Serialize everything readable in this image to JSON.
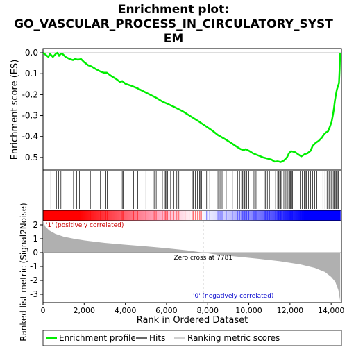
{
  "chart_data": [
    {
      "type": "line",
      "title": "Enrichment plot: GO_VASCULAR_PROCESS_IN_CIRCULATORY_SYSTEM",
      "title_lines": [
        "Enrichment plot:",
        "GO_VASCULAR_PROCESS_IN_CIRCULATORY_SYST",
        "EM"
      ],
      "ylabel": "Enrichment score (ES)",
      "xlim": [
        0,
        14500
      ],
      "ylim": [
        -0.56,
        0.02
      ],
      "yticks": [
        0.0,
        -0.1,
        -0.2,
        -0.3,
        -0.4,
        -0.5
      ],
      "ytick_labels": [
        "0.0",
        "-0.1",
        "-0.2",
        "-0.3",
        "-0.4",
        "-0.5"
      ],
      "grid": false,
      "series": [
        {
          "name": "Enrichment profile",
          "color": "#00ee00",
          "points": [
            [
              0,
              0.0
            ],
            [
              130,
              -0.01
            ],
            [
              260,
              -0.02
            ],
            [
              340,
              -0.005
            ],
            [
              480,
              -0.02
            ],
            [
              620,
              -0.005
            ],
            [
              700,
              0.0
            ],
            [
              780,
              -0.015
            ],
            [
              860,
              -0.005
            ],
            [
              940,
              -0.005
            ],
            [
              1100,
              -0.02
            ],
            [
              1300,
              -0.03
            ],
            [
              1450,
              -0.035
            ],
            [
              1550,
              -0.03
            ],
            [
              1700,
              -0.033
            ],
            [
              1850,
              -0.03
            ],
            [
              2000,
              -0.045
            ],
            [
              2200,
              -0.06
            ],
            [
              2350,
              -0.065
            ],
            [
              2600,
              -0.08
            ],
            [
              2800,
              -0.09
            ],
            [
              2950,
              -0.095
            ],
            [
              3100,
              -0.095
            ],
            [
              3300,
              -0.11
            ],
            [
              3550,
              -0.125
            ],
            [
              3750,
              -0.14
            ],
            [
              3850,
              -0.135
            ],
            [
              4000,
              -0.148
            ],
            [
              4300,
              -0.158
            ],
            [
              4600,
              -0.17
            ],
            [
              4900,
              -0.185
            ],
            [
              5200,
              -0.2
            ],
            [
              5500,
              -0.215
            ],
            [
              5800,
              -0.233
            ],
            [
              6100,
              -0.246
            ],
            [
              6400,
              -0.26
            ],
            [
              6800,
              -0.28
            ],
            [
              7200,
              -0.305
            ],
            [
              7600,
              -0.33
            ],
            [
              7900,
              -0.35
            ],
            [
              8200,
              -0.37
            ],
            [
              8500,
              -0.393
            ],
            [
              8800,
              -0.41
            ],
            [
              9100,
              -0.428
            ],
            [
              9400,
              -0.448
            ],
            [
              9600,
              -0.46
            ],
            [
              9750,
              -0.465
            ],
            [
              9850,
              -0.46
            ],
            [
              10000,
              -0.468
            ],
            [
              10200,
              -0.48
            ],
            [
              10450,
              -0.49
            ],
            [
              10700,
              -0.5
            ],
            [
              10900,
              -0.505
            ],
            [
              11100,
              -0.51
            ],
            [
              11250,
              -0.52
            ],
            [
              11400,
              -0.518
            ],
            [
              11550,
              -0.522
            ],
            [
              11700,
              -0.515
            ],
            [
              11850,
              -0.5
            ],
            [
              11950,
              -0.48
            ],
            [
              12050,
              -0.47
            ],
            [
              12250,
              -0.475
            ],
            [
              12400,
              -0.485
            ],
            [
              12550,
              -0.495
            ],
            [
              12700,
              -0.485
            ],
            [
              12850,
              -0.48
            ],
            [
              13000,
              -0.468
            ],
            [
              13100,
              -0.445
            ],
            [
              13250,
              -0.43
            ],
            [
              13400,
              -0.42
            ],
            [
              13550,
              -0.405
            ],
            [
              13650,
              -0.39
            ],
            [
              13750,
              -0.38
            ],
            [
              13850,
              -0.375
            ],
            [
              13950,
              -0.35
            ],
            [
              14020,
              -0.33
            ],
            [
              14080,
              -0.3
            ],
            [
              14130,
              -0.27
            ],
            [
              14180,
              -0.23
            ],
            [
              14230,
              -0.2
            ],
            [
              14280,
              -0.175
            ],
            [
              14330,
              -0.16
            ],
            [
              14380,
              -0.145
            ],
            [
              14410,
              -0.08
            ],
            [
              14430,
              -0.02
            ],
            [
              14440,
              0.0
            ]
          ]
        }
      ]
    },
    {
      "type": "scatter",
      "subtype": "hits",
      "series_name": "Hits",
      "color": "#000000",
      "x": [
        50,
        380,
        650,
        760,
        870,
        1480,
        1630,
        1770,
        2300,
        2790,
        3050,
        3120,
        3800,
        3850,
        3900,
        4400,
        4600,
        5000,
        5400,
        5500,
        5800,
        5900,
        5950,
        6000,
        6050,
        6200,
        6350,
        6500,
        6600,
        6900,
        7100,
        7250,
        7300,
        7400,
        7500,
        7600,
        7650,
        7700,
        7950,
        8100,
        8500,
        8600,
        8700,
        8900,
        9200,
        9450,
        9550,
        9650,
        9700,
        9750,
        9800,
        9850,
        9900,
        10000,
        10250,
        10350,
        10750,
        10800,
        10900,
        11000,
        11300,
        11400,
        11450,
        11500,
        11550,
        11600,
        11700,
        11800,
        11850,
        11900,
        11950,
        11980,
        12020,
        12050,
        12080,
        12120,
        12500,
        12600,
        12700,
        12750,
        12800,
        12900,
        13000,
        13100,
        13200,
        13300,
        13500,
        13600,
        13700,
        13800,
        13850,
        13900,
        13950,
        14000,
        14050,
        14100,
        14150,
        14200,
        14250,
        14300,
        14350
      ]
    },
    {
      "type": "heatmap",
      "subtype": "rank-color-bar",
      "label_positive": "'1' (positively correlated)",
      "label_negative": "'0' (negatively correlated)",
      "colors": [
        "#ff0000",
        "#ffffff",
        "#0000ff"
      ]
    },
    {
      "type": "area",
      "series_name": "Ranking metric scores",
      "color": "#b0b0b0",
      "xlabel": "Rank in Ordered Dataset",
      "ylabel": "Ranked list metric (Signal2Noise)",
      "xlim": [
        0,
        14500
      ],
      "ylim": [
        -3.6,
        2.3
      ],
      "xticks": [
        0,
        2000,
        4000,
        6000,
        8000,
        10000,
        12000,
        14000
      ],
      "xtick_labels": [
        "0",
        "2,000",
        "4,000",
        "6,000",
        "8,000",
        "10,000",
        "12,000",
        "14,000"
      ],
      "yticks": [
        2,
        1,
        0,
        -1,
        -2,
        -3
      ],
      "ytick_labels": [
        "2",
        "1",
        "0",
        "-1",
        "-2",
        "-3"
      ],
      "points": [
        [
          0,
          2.3
        ],
        [
          100,
          1.9
        ],
        [
          300,
          1.6
        ],
        [
          600,
          1.35
        ],
        [
          1000,
          1.15
        ],
        [
          1500,
          1.0
        ],
        [
          2000,
          0.88
        ],
        [
          3000,
          0.7
        ],
        [
          4000,
          0.57
        ],
        [
          5000,
          0.45
        ],
        [
          6000,
          0.32
        ],
        [
          7000,
          0.16
        ],
        [
          7781,
          0.0
        ],
        [
          8500,
          -0.15
        ],
        [
          9500,
          -0.3
        ],
        [
          10500,
          -0.45
        ],
        [
          11500,
          -0.62
        ],
        [
          12500,
          -0.85
        ],
        [
          13200,
          -1.1
        ],
        [
          13700,
          -1.4
        ],
        [
          14000,
          -1.75
        ],
        [
          14200,
          -2.1
        ],
        [
          14350,
          -2.7
        ],
        [
          14440,
          -3.5
        ]
      ],
      "zero_cross_label": "Zero cross at 7781",
      "zero_cross": 7781
    }
  ],
  "legend": {
    "items": [
      {
        "label": "Enrichment profile",
        "color": "#00ee00"
      },
      {
        "label": "Hits",
        "color": "#000000"
      },
      {
        "label": "Ranking metric scores",
        "color": "#b0b0b0"
      }
    ]
  }
}
